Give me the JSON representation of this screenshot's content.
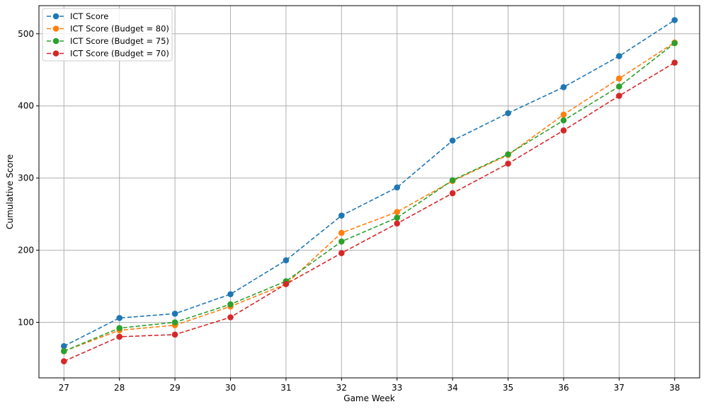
{
  "chart_data": {
    "type": "line",
    "title": "",
    "xlabel": "Game Week",
    "ylabel": "Cumulative Score",
    "x": [
      27,
      28,
      29,
      30,
      31,
      32,
      33,
      34,
      35,
      36,
      37,
      38
    ],
    "xlim": [
      26.55,
      38.45
    ],
    "ylim": [
      23,
      539
    ],
    "yticks": [
      100,
      200,
      300,
      400,
      500
    ],
    "grid": true,
    "legend_position": "top-left",
    "series": [
      {
        "name": "ICT Score",
        "color": "#1f77b4",
        "values": [
          67,
          106,
          112,
          139,
          186,
          248,
          287,
          352,
          390,
          426,
          469,
          519
        ]
      },
      {
        "name": "ICT Score (Budget = 80)",
        "color": "#ff7f0e",
        "values": [
          60,
          89,
          96,
          122,
          153,
          224,
          253,
          296,
          332,
          388,
          438,
          488
        ]
      },
      {
        "name": "ICT Score (Budget = 75)",
        "color": "#2ca02c",
        "values": [
          60,
          92,
          100,
          125,
          157,
          212,
          245,
          297,
          333,
          380,
          427,
          487
        ]
      },
      {
        "name": "ICT Score (Budget = 70)",
        "color": "#d62728",
        "values": [
          46,
          80,
          83,
          107,
          153,
          196,
          237,
          279,
          320,
          366,
          414,
          460
        ]
      }
    ]
  }
}
